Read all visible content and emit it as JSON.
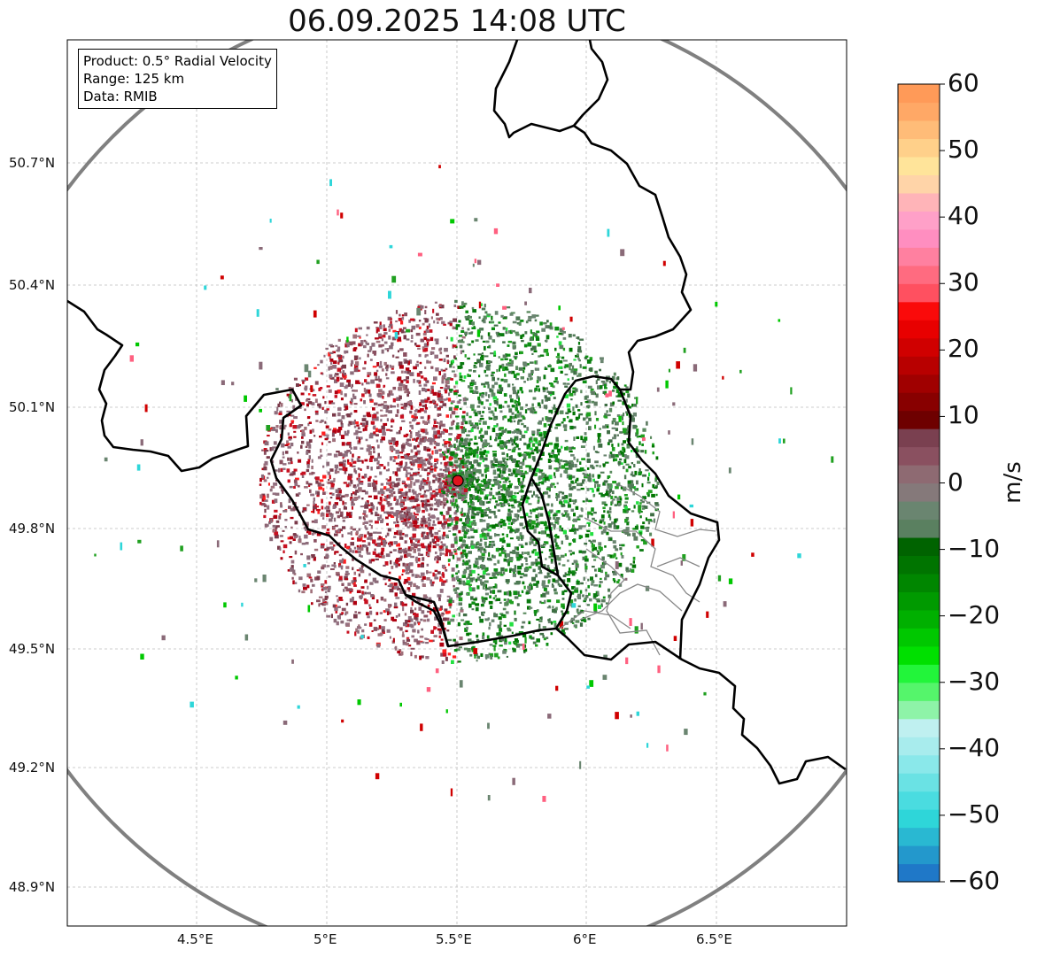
{
  "title": "06.09.2025 14:08 UTC",
  "info": {
    "product": "Product: 0.5° Radial Velocity",
    "range": "Range: 125 km",
    "data": "Data: RMIB"
  },
  "axes": {
    "lat_ticks": [
      "50.7°N",
      "50.4°N",
      "50.1°N",
      "49.8°N",
      "49.5°N",
      "49.2°N",
      "48.9°N"
    ],
    "lon_ticks": [
      "4.5°E",
      "5°E",
      "5.5°E",
      "6°E",
      "6.5°E"
    ]
  },
  "radar_site": {
    "lon": 5.5,
    "lat": 49.91,
    "color": "#e0141e"
  },
  "colorbar": {
    "unit": "m/s",
    "min": -60,
    "max": 60,
    "ticks": [
      "60",
      "50",
      "40",
      "30",
      "20",
      "10",
      "0",
      "−10",
      "−20",
      "−30",
      "−40",
      "−50",
      "−60"
    ],
    "colors": [
      "#1f78c8",
      "#2398cc",
      "#29b8d2",
      "#2ed6d9",
      "#4adce0",
      "#6ae2e4",
      "#8ae8ea",
      "#a8eced",
      "#bff0f0",
      "#8ef3a8",
      "#55f56b",
      "#22f53a",
      "#00e000",
      "#00c800",
      "#00b000",
      "#009a00",
      "#008600",
      "#007400",
      "#006300",
      "#5a8060",
      "#6a8570",
      "#85797a",
      "#8e6a72",
      "#8a5060",
      "#7a4050",
      "#6e0000",
      "#880000",
      "#a00000",
      "#b80000",
      "#d00000",
      "#e80000",
      "#fa0a0a",
      "#ff5060",
      "#ff6b80",
      "#ff80a0",
      "#ff8ec0",
      "#ffa0c8",
      "#ffb4b8",
      "#ffd4a8",
      "#ffe49a",
      "#ffd08a",
      "#ffbc78",
      "#ffa866",
      "#ff9a58"
    ]
  }
}
